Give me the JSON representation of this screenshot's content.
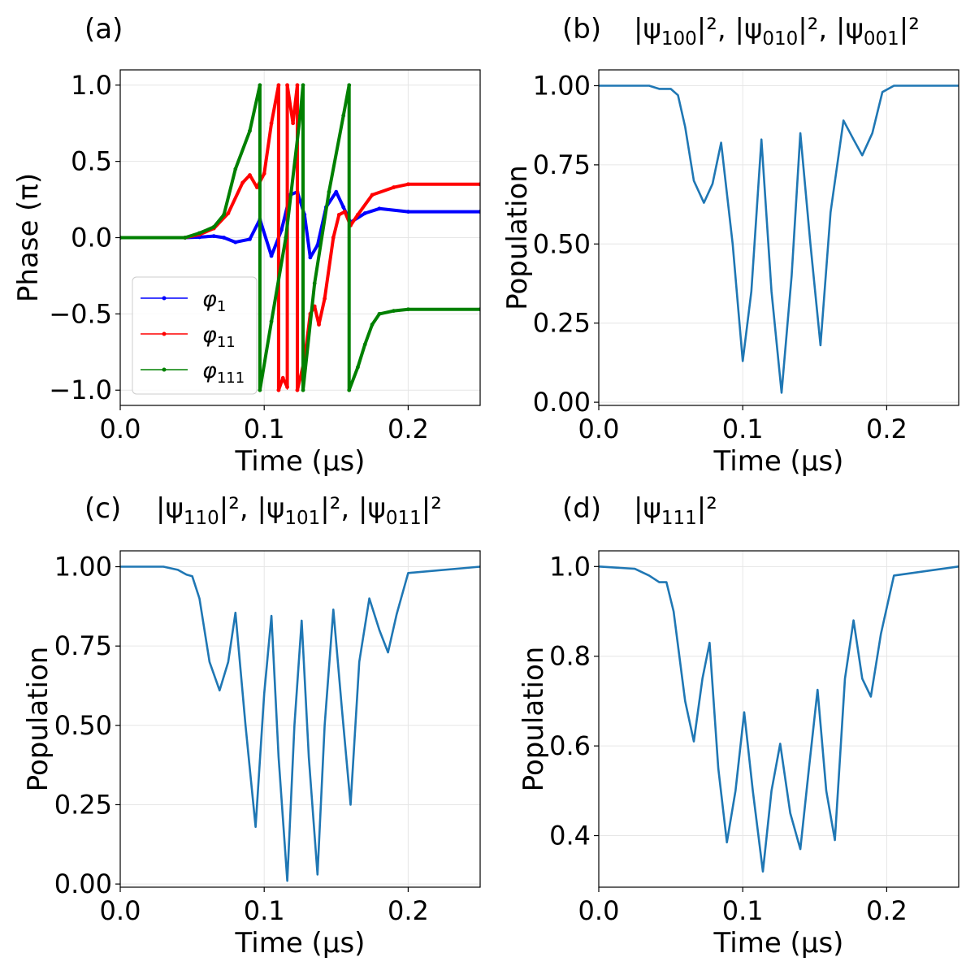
{
  "chart_data": [
    {
      "type": "line",
      "panel": "(a)",
      "title": "",
      "xlabel": "Time (μs)",
      "ylabel": "Phase (π)",
      "xlim": [
        0,
        0.25
      ],
      "ylim": [
        -1.1,
        1.1
      ],
      "xticks": [
        0.0,
        0.1,
        0.2
      ],
      "xtick_labels": [
        "0.0",
        "0.1",
        "0.2"
      ],
      "yticks": [
        -1.0,
        -0.5,
        0.0,
        0.5,
        1.0
      ],
      "ytick_labels": [
        "−1.0",
        "−0.5",
        "0.0",
        "0.5",
        "1.0"
      ],
      "grid": true,
      "legend_position": "lower-left",
      "series": [
        {
          "name": "φ1",
          "label_main": "φ",
          "label_sub": "1",
          "color": "#0000ff",
          "x": [
            0,
            0.045,
            0.055,
            0.065,
            0.072,
            0.08,
            0.09,
            0.097,
            0.105,
            0.112,
            0.118,
            0.123,
            0.128,
            0.132,
            0.137,
            0.143,
            0.15,
            0.155,
            0.16,
            0.17,
            0.18,
            0.2,
            0.25
          ],
          "y": [
            0,
            0,
            0.003,
            0.01,
            0.0,
            -0.03,
            -0.01,
            0.12,
            -0.12,
            0.05,
            0.28,
            0.3,
            0.15,
            -0.13,
            -0.05,
            0.2,
            0.3,
            0.2,
            0.1,
            0.16,
            0.19,
            0.17,
            0.17
          ]
        },
        {
          "name": "φ11",
          "label_main": "φ",
          "label_sub": "11",
          "color": "#ff0000",
          "x": [
            0,
            0.045,
            0.055,
            0.065,
            0.075,
            0.085,
            0.09,
            0.095,
            0.1,
            0.105,
            0.11,
            0.11,
            0.113,
            0.116,
            0.116,
            0.12,
            0.123,
            0.123,
            0.128,
            0.132,
            0.135,
            0.138,
            0.142,
            0.148,
            0.152,
            0.156,
            0.16,
            0.165,
            0.175,
            0.19,
            0.2,
            0.25
          ],
          "y": [
            0,
            0,
            0.02,
            0.06,
            0.16,
            0.36,
            0.41,
            0.33,
            0.42,
            0.75,
            1.0,
            -1.0,
            -0.92,
            -0.98,
            1.0,
            0.75,
            1.0,
            -1.0,
            -0.8,
            -0.5,
            -0.45,
            -0.57,
            -0.4,
            0.0,
            0.15,
            0.17,
            0.08,
            0.15,
            0.28,
            0.33,
            0.35,
            0.35
          ]
        },
        {
          "name": "φ111",
          "label_main": "φ",
          "label_sub": "111",
          "color": "#008000",
          "x": [
            0,
            0.045,
            0.055,
            0.065,
            0.072,
            0.08,
            0.09,
            0.097,
            0.097,
            0.105,
            0.115,
            0.125,
            0.127,
            0.127,
            0.135,
            0.145,
            0.155,
            0.159,
            0.159,
            0.165,
            0.17,
            0.175,
            0.18,
            0.19,
            0.2,
            0.25
          ],
          "y": [
            0,
            0,
            0.03,
            0.07,
            0.15,
            0.45,
            0.7,
            1.0,
            -1.0,
            -0.55,
            0.0,
            0.8,
            1.0,
            -1.0,
            -0.3,
            0.3,
            0.8,
            1.0,
            -1.0,
            -0.85,
            -0.7,
            -0.57,
            -0.5,
            -0.48,
            -0.47,
            -0.47
          ]
        }
      ],
      "vlines": [
        {
          "x": 0.097,
          "color": "#008000"
        },
        {
          "x": 0.11,
          "color": "#ff0000"
        },
        {
          "x": 0.116,
          "color": "#ff0000"
        },
        {
          "x": 0.123,
          "color": "#ff0000"
        },
        {
          "x": 0.127,
          "color": "#008000"
        },
        {
          "x": 0.159,
          "color": "#008000"
        }
      ]
    },
    {
      "type": "line",
      "panel": "(b)",
      "title": "|ψ100|², |ψ010|², |ψ001|²",
      "title_terms": [
        {
          "pre": "|ψ",
          "sub": "100",
          "post": "|²"
        },
        {
          "pre": ", |ψ",
          "sub": "010",
          "post": "|²"
        },
        {
          "pre": ", |ψ",
          "sub": "001",
          "post": "|²"
        }
      ],
      "xlabel": "Time (μs)",
      "ylabel": "Population",
      "xlim": [
        0,
        0.25
      ],
      "ylim": [
        -0.01,
        1.05
      ],
      "xticks": [
        0.0,
        0.1,
        0.2
      ],
      "xtick_labels": [
        "0.0",
        "0.1",
        "0.2"
      ],
      "yticks": [
        0.0,
        0.25,
        0.5,
        0.75,
        1.0
      ],
      "ytick_labels": [
        "0.00",
        "0.25",
        "0.50",
        "0.75",
        "1.00"
      ],
      "grid": true,
      "series": [
        {
          "name": "population",
          "color": "#1f77b4",
          "x": [
            0,
            0.035,
            0.042,
            0.05,
            0.055,
            0.06,
            0.066,
            0.073,
            0.079,
            0.085,
            0.093,
            0.1,
            0.106,
            0.113,
            0.12,
            0.127,
            0.134,
            0.14,
            0.147,
            0.154,
            0.161,
            0.17,
            0.177,
            0.183,
            0.19,
            0.197,
            0.205,
            0.25
          ],
          "y": [
            1.0,
            1.0,
            0.99,
            0.99,
            0.97,
            0.87,
            0.7,
            0.63,
            0.69,
            0.82,
            0.5,
            0.13,
            0.35,
            0.83,
            0.35,
            0.03,
            0.4,
            0.85,
            0.5,
            0.18,
            0.6,
            0.89,
            0.83,
            0.78,
            0.85,
            0.98,
            1.0,
            1.0
          ]
        }
      ]
    },
    {
      "type": "line",
      "panel": "(c)",
      "title": "|ψ110|², |ψ101|², |ψ011|²",
      "title_terms": [
        {
          "pre": "|ψ",
          "sub": "110",
          "post": "|²"
        },
        {
          "pre": ", |ψ",
          "sub": "101",
          "post": "|²"
        },
        {
          "pre": ", |ψ",
          "sub": "011",
          "post": "|²"
        }
      ],
      "xlabel": "Time (μs)",
      "ylabel": "Population",
      "xlim": [
        0,
        0.25
      ],
      "ylim": [
        -0.01,
        1.05
      ],
      "xticks": [
        0.0,
        0.1,
        0.2
      ],
      "xtick_labels": [
        "0.0",
        "0.1",
        "0.2"
      ],
      "yticks": [
        0.0,
        0.25,
        0.5,
        0.75,
        1.0
      ],
      "ytick_labels": [
        "0.00",
        "0.25",
        "0.50",
        "0.75",
        "1.00"
      ],
      "grid": true,
      "series": [
        {
          "name": "population",
          "color": "#1f77b4",
          "x": [
            0,
            0.03,
            0.04,
            0.046,
            0.05,
            0.055,
            0.062,
            0.069,
            0.075,
            0.08,
            0.087,
            0.094,
            0.1,
            0.105,
            0.11,
            0.116,
            0.121,
            0.126,
            0.131,
            0.137,
            0.142,
            0.148,
            0.154,
            0.16,
            0.166,
            0.173,
            0.18,
            0.186,
            0.192,
            0.2,
            0.25
          ],
          "y": [
            1.0,
            1.0,
            0.99,
            0.975,
            0.97,
            0.9,
            0.7,
            0.61,
            0.7,
            0.855,
            0.5,
            0.18,
            0.6,
            0.845,
            0.4,
            0.01,
            0.5,
            0.83,
            0.4,
            0.03,
            0.5,
            0.865,
            0.55,
            0.25,
            0.7,
            0.9,
            0.8,
            0.73,
            0.85,
            0.98,
            1.0
          ]
        }
      ]
    },
    {
      "type": "line",
      "panel": "(d)",
      "title": "|ψ111|²",
      "title_terms": [
        {
          "pre": "|ψ",
          "sub": "111",
          "post": "|²"
        }
      ],
      "xlabel": "Time (μs)",
      "ylabel": "Population",
      "xlim": [
        0,
        0.25
      ],
      "ylim": [
        0.285,
        1.035
      ],
      "xticks": [
        0.0,
        0.1,
        0.2
      ],
      "xtick_labels": [
        "0.0",
        "0.1",
        "0.2"
      ],
      "yticks": [
        0.4,
        0.6,
        0.8,
        1.0
      ],
      "ytick_labels": [
        "0.4",
        "0.6",
        "0.8",
        "1.0"
      ],
      "grid": true,
      "series": [
        {
          "name": "population",
          "color": "#1f77b4",
          "x": [
            0,
            0.025,
            0.035,
            0.042,
            0.047,
            0.052,
            0.06,
            0.066,
            0.072,
            0.077,
            0.083,
            0.089,
            0.095,
            0.101,
            0.107,
            0.114,
            0.12,
            0.126,
            0.133,
            0.14,
            0.146,
            0.152,
            0.158,
            0.164,
            0.171,
            0.177,
            0.183,
            0.189,
            0.196,
            0.205,
            0.25
          ],
          "y": [
            1.0,
            0.995,
            0.98,
            0.965,
            0.965,
            0.9,
            0.7,
            0.61,
            0.75,
            0.83,
            0.55,
            0.385,
            0.5,
            0.675,
            0.5,
            0.32,
            0.5,
            0.605,
            0.45,
            0.37,
            0.55,
            0.725,
            0.5,
            0.39,
            0.75,
            0.88,
            0.75,
            0.71,
            0.85,
            0.98,
            1.0
          ]
        }
      ]
    }
  ]
}
